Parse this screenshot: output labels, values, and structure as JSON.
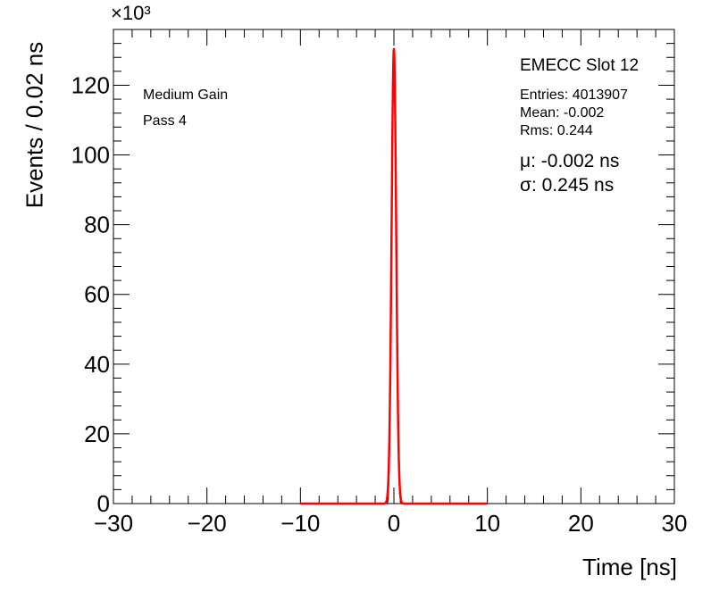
{
  "chart_data": {
    "type": "histogram",
    "xlabel": "Time [ns]",
    "ylabel": "Events / 0.02 ns",
    "y_multiplier": "×10³",
    "xlim": [
      -30,
      30
    ],
    "ylim": [
      0,
      136000
    ],
    "x_ticks": [
      -30,
      -20,
      -10,
      0,
      10,
      20,
      30
    ],
    "x_tick_labels": [
      "−30",
      "−20",
      "−10",
      "0",
      "10",
      "20",
      "30"
    ],
    "y_ticks": [
      0,
      20000,
      40000,
      60000,
      80000,
      100000,
      120000
    ],
    "y_tick_labels": [
      "0",
      "20",
      "40",
      "60",
      "80",
      "100",
      "120"
    ],
    "grid": false,
    "hist_color": "#000000",
    "fit_color": "#ff0000",
    "histogram_bins": [
      {
        "x": -0.7,
        "y": 0
      },
      {
        "x": -0.6,
        "y": 1500
      },
      {
        "x": -0.5,
        "y": 9000
      },
      {
        "x": -0.4,
        "y": 30000
      },
      {
        "x": -0.3,
        "y": 68000
      },
      {
        "x": -0.2,
        "y": 98000
      },
      {
        "x": -0.15,
        "y": 112000
      },
      {
        "x": -0.1,
        "y": 122000
      },
      {
        "x": -0.05,
        "y": 128000
      },
      {
        "x": 0.0,
        "y": 130500
      },
      {
        "x": 0.05,
        "y": 126000
      },
      {
        "x": 0.1,
        "y": 117000
      },
      {
        "x": 0.15,
        "y": 104000
      },
      {
        "x": 0.2,
        "y": 88000
      },
      {
        "x": 0.3,
        "y": 55000
      },
      {
        "x": 0.4,
        "y": 28000
      },
      {
        "x": 0.5,
        "y": 11000
      },
      {
        "x": 0.6,
        "y": 3000
      },
      {
        "x": 0.7,
        "y": 500
      },
      {
        "x": 0.8,
        "y": 0
      }
    ],
    "fit": {
      "type": "gaussian",
      "mu": -0.002,
      "sigma": 0.245,
      "amplitude": 130500,
      "range": [
        -10,
        10
      ]
    }
  },
  "legend": {
    "left_lines": [
      "Medium Gain",
      "Pass 4"
    ],
    "title": "EMECC Slot 12",
    "entries": "Entries: 4013907",
    "mean": "Mean: -0.002",
    "rms": "Rms: 0.244",
    "mu": "μ: -0.002 ns",
    "sigma": "σ: 0.245 ns"
  }
}
